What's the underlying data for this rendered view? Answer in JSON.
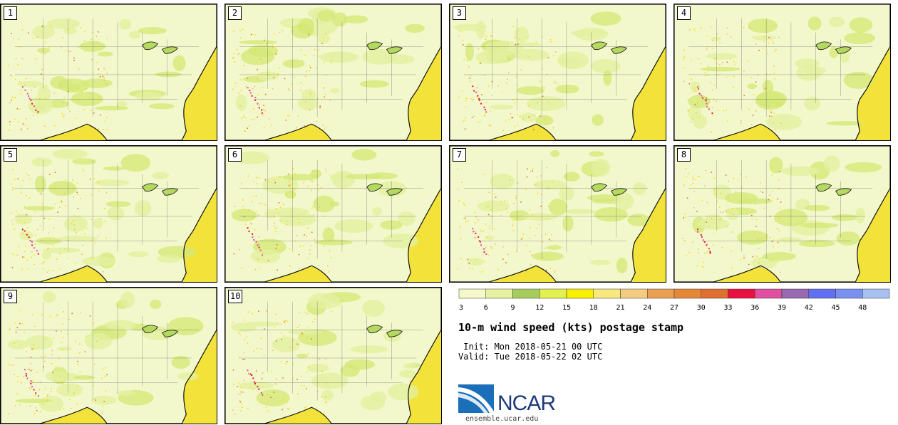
{
  "panels": [
    {
      "label": "1"
    },
    {
      "label": "2"
    },
    {
      "label": "3"
    },
    {
      "label": "4"
    },
    {
      "label": "5"
    },
    {
      "label": "6"
    },
    {
      "label": "7"
    },
    {
      "label": "8"
    },
    {
      "label": "9"
    },
    {
      "label": "10"
    }
  ],
  "header": {
    "title": "10-m wind speed (kts) postage stamp",
    "init": " Init: Mon 2018-05-21 00 UTC",
    "valid": "Valid: Tue 2018-05-22 02 UTC"
  },
  "branding": {
    "logo_text": "NCAR",
    "url": "ensemble.ucar.edu"
  },
  "chart_data": {
    "type": "heatmap",
    "title": "10-m wind speed (kts) postage stamp",
    "units": "kts",
    "members": 10,
    "colorbar": {
      "ticks": [
        "3",
        "6",
        "9",
        "12",
        "15",
        "18",
        "21",
        "24",
        "27",
        "30",
        "33",
        "36",
        "39",
        "42",
        "45",
        "48"
      ],
      "colors": [
        "#f5f8c8",
        "#e6f2a0",
        "#a8cc5c",
        "#e2f050",
        "#f8f000",
        "#f8e880",
        "#f4cc80",
        "#eaa050",
        "#e48838",
        "#e07030",
        "#e81040",
        "#e050a0",
        "#9868b0",
        "#6070f0",
        "#7890f0",
        "#a8c0f0"
      ]
    }
  }
}
